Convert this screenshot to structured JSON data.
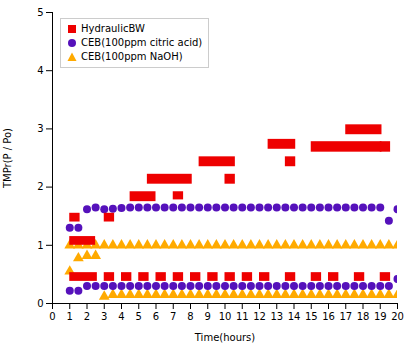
{
  "chart_data": {
    "type": "scatter",
    "xlabel": "Time(hours)",
    "ylabel": "TMPr(P / Po)",
    "xlim": [
      0,
      20
    ],
    "ylim": [
      0,
      5
    ],
    "xticks": [
      0,
      1,
      2,
      3,
      4,
      5,
      6,
      7,
      8,
      9,
      10,
      11,
      12,
      13,
      14,
      15,
      16,
      17,
      18,
      19,
      20
    ],
    "yticks": [
      0,
      1,
      2,
      3,
      4,
      5
    ],
    "grid": false,
    "legend": "upper left",
    "series": [
      {
        "name": "HydraulicBW",
        "type": "rect",
        "marker": "square",
        "color": "#ee0000",
        "segments": [
          {
            "x0": 1.0,
            "x1": 2.5,
            "y0": 1.0,
            "y1": 1.15
          },
          {
            "x0": 1.0,
            "x1": 1.6,
            "y0": 1.4,
            "y1": 1.55
          },
          {
            "x0": 3.0,
            "x1": 3.6,
            "y0": 1.4,
            "y1": 1.55
          },
          {
            "x0": 4.5,
            "x1": 6.0,
            "y0": 1.75,
            "y1": 1.92
          },
          {
            "x0": 5.5,
            "x1": 8.1,
            "y0": 2.05,
            "y1": 2.22
          },
          {
            "x0": 7.0,
            "x1": 7.6,
            "y0": 1.78,
            "y1": 1.92
          },
          {
            "x0": 8.5,
            "x1": 10.6,
            "y0": 2.35,
            "y1": 2.52
          },
          {
            "x0": 10.0,
            "x1": 10.6,
            "y0": 2.05,
            "y1": 2.22
          },
          {
            "x0": 12.5,
            "x1": 14.1,
            "y0": 2.65,
            "y1": 2.82
          },
          {
            "x0": 13.5,
            "x1": 14.1,
            "y0": 2.35,
            "y1": 2.52
          },
          {
            "x0": 15.0,
            "x1": 19.1,
            "y0": 2.6,
            "y1": 2.78
          },
          {
            "x0": 17.0,
            "x1": 19.1,
            "y0": 2.9,
            "y1": 3.07
          },
          {
            "x0": 19.0,
            "x1": 19.6,
            "y0": 2.6,
            "y1": 2.78
          },
          {
            "x0": 1.0,
            "x1": 2.6,
            "y0": 0.38,
            "y1": 0.53
          },
          {
            "x0": 3.0,
            "x1": 3.6,
            "y0": 0.38,
            "y1": 0.53
          },
          {
            "x0": 4.0,
            "x1": 4.6,
            "y0": 0.38,
            "y1": 0.53
          },
          {
            "x0": 5.0,
            "x1": 5.6,
            "y0": 0.38,
            "y1": 0.53
          },
          {
            "x0": 6.0,
            "x1": 6.6,
            "y0": 0.38,
            "y1": 0.53
          },
          {
            "x0": 7.0,
            "x1": 7.6,
            "y0": 0.38,
            "y1": 0.53
          },
          {
            "x0": 8.0,
            "x1": 8.6,
            "y0": 0.38,
            "y1": 0.53
          },
          {
            "x0": 9.0,
            "x1": 9.6,
            "y0": 0.38,
            "y1": 0.53
          },
          {
            "x0": 10.0,
            "x1": 10.6,
            "y0": 0.38,
            "y1": 0.53
          },
          {
            "x0": 11.0,
            "x1": 11.6,
            "y0": 0.38,
            "y1": 0.53
          },
          {
            "x0": 12.0,
            "x1": 12.6,
            "y0": 0.38,
            "y1": 0.53
          },
          {
            "x0": 13.5,
            "x1": 14.1,
            "y0": 0.38,
            "y1": 0.53
          },
          {
            "x0": 15.0,
            "x1": 15.6,
            "y0": 0.38,
            "y1": 0.53
          },
          {
            "x0": 16.0,
            "x1": 16.6,
            "y0": 0.38,
            "y1": 0.53
          },
          {
            "x0": 17.5,
            "x1": 18.1,
            "y0": 0.38,
            "y1": 0.53
          },
          {
            "x0": 19.0,
            "x1": 19.6,
            "y0": 0.38,
            "y1": 0.53
          }
        ]
      },
      {
        "name": "CEB(100ppm citric acid)",
        "type": "scatter",
        "marker": "circle",
        "color": "#5511bb",
        "x": [
          1,
          1.5,
          2,
          2.5,
          3,
          3.5,
          4,
          4.5,
          5,
          5.5,
          6,
          6.5,
          7,
          7.5,
          8,
          8.5,
          9,
          9.5,
          10,
          10.5,
          11,
          11.5,
          12,
          12.5,
          13,
          13.5,
          14,
          14.5,
          15,
          15.5,
          16,
          16.5,
          17,
          17.5,
          18,
          18.5,
          19,
          19.5,
          20,
          1,
          1.5,
          2,
          2.5,
          3,
          3.5,
          4,
          4.5,
          5,
          5.5,
          6,
          6.5,
          7,
          7.5,
          8,
          8.5,
          9,
          9.5,
          10,
          10.5,
          11,
          11.5,
          12,
          12.5,
          13,
          13.5,
          14,
          14.5,
          15,
          15.5,
          16,
          16.5,
          17,
          17.5,
          18,
          18.5,
          19,
          19.5,
          20
        ],
        "values": [
          1.3,
          1.3,
          1.62,
          1.65,
          1.62,
          1.63,
          1.64,
          1.65,
          1.65,
          1.65,
          1.65,
          1.65,
          1.65,
          1.65,
          1.65,
          1.65,
          1.65,
          1.65,
          1.65,
          1.65,
          1.65,
          1.65,
          1.65,
          1.65,
          1.65,
          1.65,
          1.65,
          1.65,
          1.65,
          1.65,
          1.65,
          1.65,
          1.65,
          1.65,
          1.65,
          1.65,
          1.65,
          1.42,
          1.62,
          0.22,
          0.22,
          0.3,
          0.3,
          0.3,
          0.3,
          0.3,
          0.3,
          0.3,
          0.3,
          0.3,
          0.3,
          0.3,
          0.3,
          0.3,
          0.3,
          0.3,
          0.3,
          0.3,
          0.3,
          0.3,
          0.3,
          0.3,
          0.3,
          0.3,
          0.3,
          0.3,
          0.3,
          0.3,
          0.3,
          0.3,
          0.3,
          0.3,
          0.3,
          0.3,
          0.3,
          0.3,
          0.3,
          0.42
        ]
      },
      {
        "name": "CEB(100ppm NaOH)",
        "type": "scatter",
        "marker": "triangle",
        "color": "#ffaa00",
        "x": [
          1,
          1.5,
          2,
          2.5,
          3,
          3.5,
          4,
          4.5,
          5,
          5.5,
          6,
          6.5,
          7,
          7.5,
          8,
          8.5,
          9,
          9.5,
          10,
          10.5,
          11,
          11.5,
          12,
          12.5,
          13,
          13.5,
          14,
          14.5,
          15,
          15.5,
          16,
          16.5,
          17,
          17.5,
          18,
          18.5,
          19,
          19.5,
          20,
          1,
          1.5,
          2,
          2.5,
          3,
          3.5,
          4,
          4.5,
          5,
          5.5,
          6,
          6.5,
          7,
          7.5,
          8,
          8.5,
          9,
          9.5,
          10,
          10.5,
          11,
          11.5,
          12,
          12.5,
          13,
          13.5,
          14,
          14.5,
          15,
          15.5,
          16,
          16.5,
          17,
          17.5,
          18,
          18.5,
          19,
          19.5,
          20
        ],
        "values": [
          1.0,
          1.0,
          1.0,
          1.0,
          1.0,
          1.0,
          1.0,
          1.0,
          1.0,
          1.0,
          1.0,
          1.0,
          1.0,
          1.0,
          1.0,
          1.0,
          1.0,
          1.0,
          1.0,
          1.0,
          1.0,
          1.0,
          1.0,
          1.0,
          1.0,
          1.0,
          1.0,
          1.0,
          1.0,
          1.0,
          1.0,
          1.0,
          1.0,
          1.0,
          1.0,
          1.0,
          1.0,
          1.0,
          1.0,
          0.55,
          0.78,
          0.82,
          0.82,
          0.12,
          0.15,
          0.15,
          0.15,
          0.15,
          0.15,
          0.15,
          0.15,
          0.15,
          0.15,
          0.15,
          0.15,
          0.15,
          0.15,
          0.15,
          0.15,
          0.15,
          0.15,
          0.15,
          0.15,
          0.15,
          0.15,
          0.15,
          0.15,
          0.15,
          0.15,
          0.15,
          0.15,
          0.15,
          0.15,
          0.15,
          0.15,
          0.15,
          0.15,
          0.15
        ]
      }
    ]
  }
}
